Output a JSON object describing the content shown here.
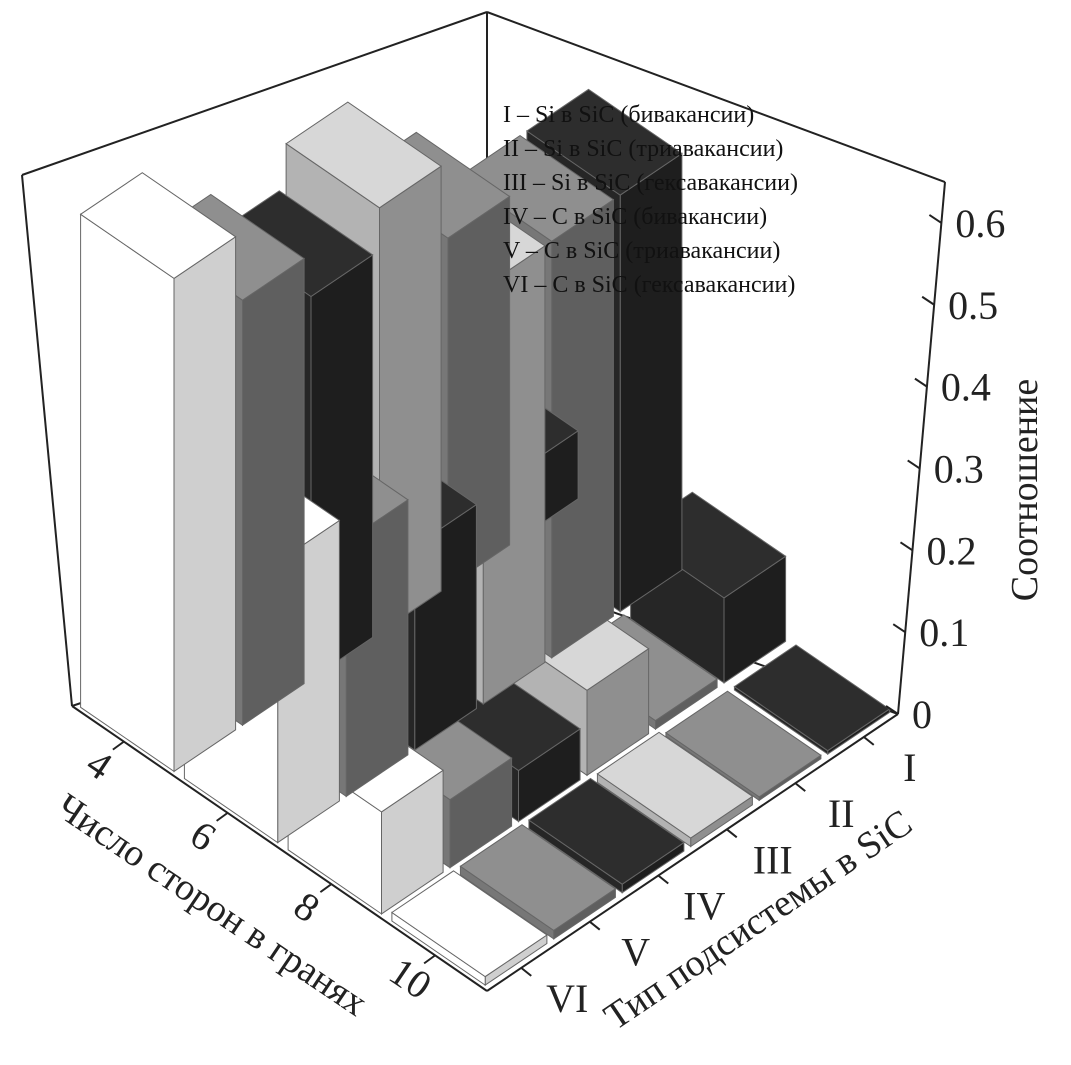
{
  "chart_data": {
    "type": "bar3d",
    "z_ticks": [
      "0",
      "0.1",
      "0.2",
      "0.3",
      "0.4",
      "0.5",
      "0.6"
    ],
    "zlim": [
      0,
      0.65
    ],
    "zlabel": "Соотношение",
    "xlabel": "Число сторон в гранях",
    "ylabel": "Тип подсистемы в SiC",
    "x_categories": [
      "4",
      "6",
      "8",
      "10"
    ],
    "y_categories": [
      "I",
      "II",
      "III",
      "IV",
      "V",
      "VI"
    ],
    "legend": [
      "I – Si в SiC (бивакансии)",
      "II – Si в SiC (триавакансии)",
      "III – Si в SiC (гексавакансии)",
      "IV – C в SiC (бивакансии)",
      "V – C в SiC (триавакансии)",
      "VI – C в SiC (гексавакансии)"
    ],
    "series": [
      {
        "category": "I",
        "color": "#1e1e1e",
        "values": [
          0.08,
          0.49,
          0.1,
          0.0
        ]
      },
      {
        "category": "II",
        "color": "#5f5f5f",
        "values": [
          0.41,
          0.49,
          0.01,
          0.0
        ]
      },
      {
        "category": "III",
        "color": "#8f8f8f",
        "values": [
          0.5,
          0.49,
          0.1,
          0.01
        ]
      },
      {
        "category": "IV",
        "color": "#1e1e1e",
        "values": [
          0.45,
          0.24,
          0.06,
          0.01
        ]
      },
      {
        "category": "V",
        "color": "#5f5f5f",
        "values": [
          0.5,
          0.3,
          0.08,
          0.01
        ]
      },
      {
        "category": "VI",
        "color": "#cfcfcf",
        "values": [
          0.58,
          0.33,
          0.12,
          0.01
        ]
      }
    ],
    "grid": false,
    "legend_position": "top-right"
  }
}
